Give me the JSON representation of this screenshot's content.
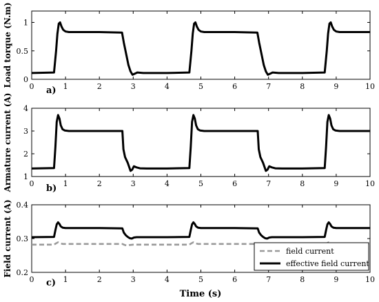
{
  "figure": {
    "shared_xlabel": "Time (s)"
  },
  "chart_data": [
    {
      "id": "a",
      "type": "line",
      "panel_label": "a)",
      "ylabel": "Load torque (N.m)",
      "xlim": [
        0,
        10
      ],
      "ylim": [
        0,
        1.2
      ],
      "xticks": [
        0,
        1,
        2,
        3,
        4,
        5,
        6,
        7,
        8,
        9,
        10
      ],
      "yticks": [
        0,
        0.5,
        1
      ],
      "ytick_labels": [
        "0",
        "0.5",
        "1"
      ],
      "grid": false,
      "series": [
        {
          "color": "#000000",
          "style": "solid",
          "x": [
            0,
            0.66,
            0.72,
            0.76,
            0.8,
            0.84,
            0.88,
            0.93,
            1.0,
            1.1,
            1.3,
            2.0,
            2.67,
            2.72,
            2.8,
            2.86,
            2.92,
            2.98,
            3.05,
            3.12,
            3.3,
            4.0,
            4.66,
            4.72,
            4.76,
            4.8,
            4.84,
            4.88,
            4.93,
            5.0,
            5.1,
            5.3,
            6.0,
            6.67,
            6.72,
            6.8,
            6.86,
            6.92,
            6.98,
            7.05,
            7.12,
            7.3,
            8.0,
            8.66,
            8.72,
            8.76,
            8.8,
            8.84,
            8.88,
            8.93,
            9.0,
            9.1,
            9.3,
            10.0
          ],
          "y": [
            0.11,
            0.12,
            0.5,
            0.8,
            0.98,
            1.0,
            0.93,
            0.87,
            0.84,
            0.83,
            0.83,
            0.83,
            0.82,
            0.65,
            0.42,
            0.25,
            0.14,
            0.08,
            0.1,
            0.12,
            0.11,
            0.11,
            0.12,
            0.5,
            0.8,
            0.98,
            1.0,
            0.93,
            0.87,
            0.84,
            0.83,
            0.83,
            0.83,
            0.82,
            0.65,
            0.42,
            0.25,
            0.14,
            0.08,
            0.1,
            0.12,
            0.11,
            0.11,
            0.12,
            0.5,
            0.8,
            0.98,
            1.0,
            0.93,
            0.87,
            0.84,
            0.83,
            0.83,
            0.83
          ]
        }
      ]
    },
    {
      "id": "b",
      "type": "line",
      "panel_label": "b)",
      "ylabel": "Armature current (A)",
      "xlim": [
        0,
        10
      ],
      "ylim": [
        1,
        4
      ],
      "xticks": [
        0,
        1,
        2,
        3,
        4,
        5,
        6,
        7,
        8,
        9,
        10
      ],
      "yticks": [
        1,
        2,
        3,
        4
      ],
      "ytick_labels": [
        "1",
        "2",
        "3",
        "4"
      ],
      "grid": false,
      "series": [
        {
          "color": "#000000",
          "style": "solid",
          "x": [
            0,
            0.66,
            0.7,
            0.74,
            0.78,
            0.82,
            0.86,
            0.91,
            0.98,
            1.1,
            1.3,
            2.0,
            2.68,
            2.71,
            2.76,
            2.84,
            2.92,
            2.97,
            3.02,
            3.1,
            3.2,
            3.4,
            4.0,
            4.66,
            4.7,
            4.74,
            4.78,
            4.82,
            4.86,
            4.91,
            4.98,
            5.1,
            5.3,
            6.0,
            6.68,
            6.71,
            6.76,
            6.84,
            6.92,
            6.97,
            7.02,
            7.1,
            7.2,
            7.4,
            8.0,
            8.66,
            8.7,
            8.74,
            8.78,
            8.82,
            8.86,
            8.91,
            8.98,
            9.1,
            9.3,
            10.0
          ],
          "y": [
            1.35,
            1.37,
            2.3,
            3.4,
            3.7,
            3.55,
            3.25,
            3.08,
            3.02,
            3.0,
            3.0,
            3.0,
            3.0,
            2.2,
            1.85,
            1.6,
            1.25,
            1.3,
            1.45,
            1.4,
            1.36,
            1.35,
            1.35,
            1.37,
            2.3,
            3.4,
            3.7,
            3.55,
            3.25,
            3.08,
            3.02,
            3.0,
            3.0,
            3.0,
            3.0,
            2.2,
            1.85,
            1.6,
            1.25,
            1.3,
            1.45,
            1.4,
            1.36,
            1.35,
            1.35,
            1.37,
            2.3,
            3.4,
            3.7,
            3.55,
            3.25,
            3.08,
            3.02,
            3.0,
            3.0,
            3.0
          ]
        }
      ]
    },
    {
      "id": "c",
      "type": "line",
      "panel_label": "c)",
      "ylabel": "Field current (A)",
      "xlim": [
        0,
        10
      ],
      "ylim": [
        0.2,
        0.4
      ],
      "xticks": [
        0,
        1,
        2,
        3,
        4,
        5,
        6,
        7,
        8,
        9,
        10
      ],
      "yticks": [
        0.2,
        0.3,
        0.4
      ],
      "ytick_labels": [
        "0.2",
        "0.3",
        "0.4"
      ],
      "grid": false,
      "legend": {
        "position": "lower-right",
        "entries": [
          {
            "label": "field current",
            "series_index": 0
          },
          {
            "label": "effective field current",
            "series_index": 1
          }
        ]
      },
      "series": [
        {
          "name": "field current",
          "color": "#999999",
          "style": "dashed",
          "x": [
            0,
            0.66,
            0.72,
            0.78,
            0.84,
            0.92,
            1.0,
            2.0,
            2.68,
            2.75,
            2.82,
            2.9,
            3.0,
            4.0,
            4.66,
            4.72,
            4.78,
            4.84,
            4.92,
            5.0,
            6.0,
            6.68,
            6.75,
            6.82,
            6.9,
            7.0,
            8.0,
            8.66,
            8.72,
            8.78,
            8.84,
            8.92,
            9.0,
            10.0
          ],
          "y": [
            0.282,
            0.282,
            0.286,
            0.289,
            0.286,
            0.284,
            0.284,
            0.284,
            0.284,
            0.281,
            0.279,
            0.281,
            0.282,
            0.282,
            0.282,
            0.286,
            0.289,
            0.286,
            0.284,
            0.284,
            0.284,
            0.284,
            0.281,
            0.279,
            0.281,
            0.282,
            0.282,
            0.282,
            0.286,
            0.289,
            0.286,
            0.284,
            0.284,
            0.284
          ]
        },
        {
          "name": "effective field current",
          "color": "#000000",
          "style": "solid",
          "x": [
            0,
            0.66,
            0.7,
            0.74,
            0.78,
            0.82,
            0.86,
            0.92,
            1.0,
            1.2,
            2.0,
            2.68,
            2.72,
            2.78,
            2.84,
            2.9,
            2.96,
            3.02,
            3.1,
            3.3,
            4.0,
            4.66,
            4.7,
            4.74,
            4.78,
            4.82,
            4.86,
            4.92,
            5.0,
            5.2,
            6.0,
            6.68,
            6.72,
            6.78,
            6.84,
            6.9,
            6.96,
            7.02,
            7.1,
            7.3,
            8.0,
            8.66,
            8.7,
            8.74,
            8.78,
            8.82,
            8.86,
            8.92,
            9.0,
            9.2,
            10.0
          ],
          "y": [
            0.304,
            0.305,
            0.325,
            0.342,
            0.348,
            0.343,
            0.336,
            0.332,
            0.331,
            0.331,
            0.331,
            0.33,
            0.318,
            0.31,
            0.305,
            0.301,
            0.3,
            0.303,
            0.304,
            0.304,
            0.304,
            0.305,
            0.325,
            0.342,
            0.348,
            0.343,
            0.336,
            0.332,
            0.331,
            0.331,
            0.331,
            0.33,
            0.318,
            0.31,
            0.305,
            0.301,
            0.3,
            0.303,
            0.304,
            0.304,
            0.304,
            0.305,
            0.325,
            0.342,
            0.348,
            0.343,
            0.336,
            0.332,
            0.331,
            0.331,
            0.331
          ]
        }
      ]
    }
  ]
}
